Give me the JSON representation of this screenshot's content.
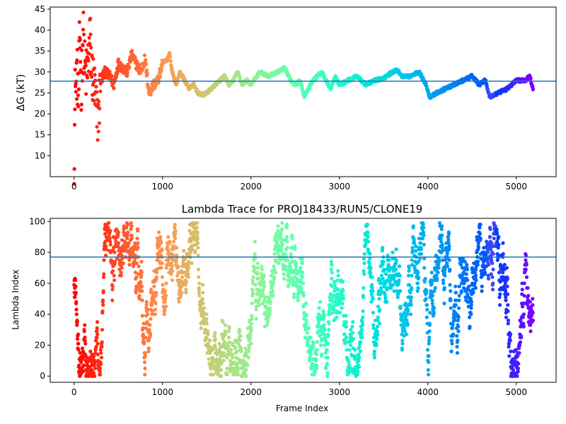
{
  "chart_data": [
    {
      "type": "scatter",
      "title": "",
      "xlabel": "",
      "ylabel": "ΔG (kT)",
      "xlim": [
        -270,
        5450
      ],
      "ylim": [
        5,
        45.5
      ],
      "xticks": [
        0,
        1000,
        2000,
        3000,
        4000,
        5000
      ],
      "xtick_labels": [
        "0",
        "1000",
        "2000",
        "3000",
        "4000",
        "5000"
      ],
      "yticks": [
        10,
        15,
        20,
        25,
        30,
        35,
        40,
        45
      ],
      "ytick_labels": [
        "10",
        "15",
        "20",
        "25",
        "30",
        "35",
        "40",
        "45"
      ],
      "reference_line": {
        "y": 27.8,
        "color": "#1f77b4"
      },
      "colormap": "rainbow (reversed by frame index: early frames red, late frames violet)",
      "grid": false,
      "legend": "none",
      "x_max_frame": 5190,
      "series": [
        {
          "x": [
            0,
            5,
            10,
            15,
            20,
            30,
            40,
            50,
            60,
            70,
            80,
            100,
            120,
            140,
            160,
            180,
            200,
            230,
            260,
            280,
            300,
            350,
            400,
            450,
            500,
            550,
            600,
            650,
            700,
            750,
            800,
            850,
            900,
            950,
            1000,
            1050,
            1080,
            1100,
            1150,
            1200,
            1250,
            1300,
            1350,
            1400,
            1450,
            1500,
            1550,
            1600,
            1650,
            1700,
            1750,
            1800,
            1850,
            1900,
            1950,
            2000,
            2100,
            2200,
            2300,
            2380,
            2450,
            2500,
            2560,
            2600,
            2700,
            2800,
            2900,
            2950,
            3000,
            3100,
            3200,
            3300,
            3400,
            3500,
            3600,
            3660,
            3700,
            3800,
            3900,
            3980,
            4020,
            4100,
            4200,
            4300,
            4400,
            4500,
            4580,
            4650,
            4700,
            4800,
            4900,
            5000,
            5100,
            5150,
            5190
          ],
          "y": [
            10,
            16,
            20,
            32,
            24,
            30,
            28,
            22,
            35,
            38,
            25,
            40,
            31,
            29,
            33,
            38,
            30,
            26,
            18,
            22,
            28,
            30,
            29,
            27,
            32,
            31,
            30,
            34,
            32,
            30,
            33,
            25,
            27,
            28,
            32,
            33,
            34.5,
            31,
            27,
            30,
            28,
            26,
            27,
            25,
            24.5,
            25,
            26,
            27,
            28,
            29,
            27,
            28,
            30,
            27,
            28,
            27,
            30,
            29,
            30,
            31,
            28,
            27,
            28,
            24,
            28,
            30,
            26,
            29,
            27,
            28,
            29,
            27,
            28,
            28.5,
            30,
            30.5,
            29,
            29,
            30,
            27,
            24,
            25,
            26,
            27,
            28,
            29,
            27,
            28,
            24,
            25,
            26,
            28,
            28,
            29,
            26
          ]
        }
      ]
    },
    {
      "type": "scatter",
      "title": "Lambda Trace for PROJ18433/RUN5/CLONE19",
      "xlabel": "Frame Index",
      "ylabel": "Lambda Index",
      "xlim": [
        -270,
        5450
      ],
      "ylim": [
        -4,
        102
      ],
      "xticks": [
        0,
        1000,
        2000,
        3000,
        4000,
        5000
      ],
      "xtick_labels": [
        "0",
        "1000",
        "2000",
        "3000",
        "4000",
        "5000"
      ],
      "yticks": [
        0,
        20,
        40,
        60,
        80,
        100
      ],
      "ytick_labels": [
        "0",
        "20",
        "40",
        "60",
        "80",
        "100"
      ],
      "reference_line": {
        "y": 77,
        "color": "#1f77b4"
      },
      "colormap": "rainbow (reversed by frame index: early frames red, late frames violet)",
      "grid": false,
      "legend": "none",
      "x_max_frame": 5190,
      "lambda_range": [
        0,
        99
      ],
      "point_density": "dense random walk across all lambda windows"
    }
  ]
}
